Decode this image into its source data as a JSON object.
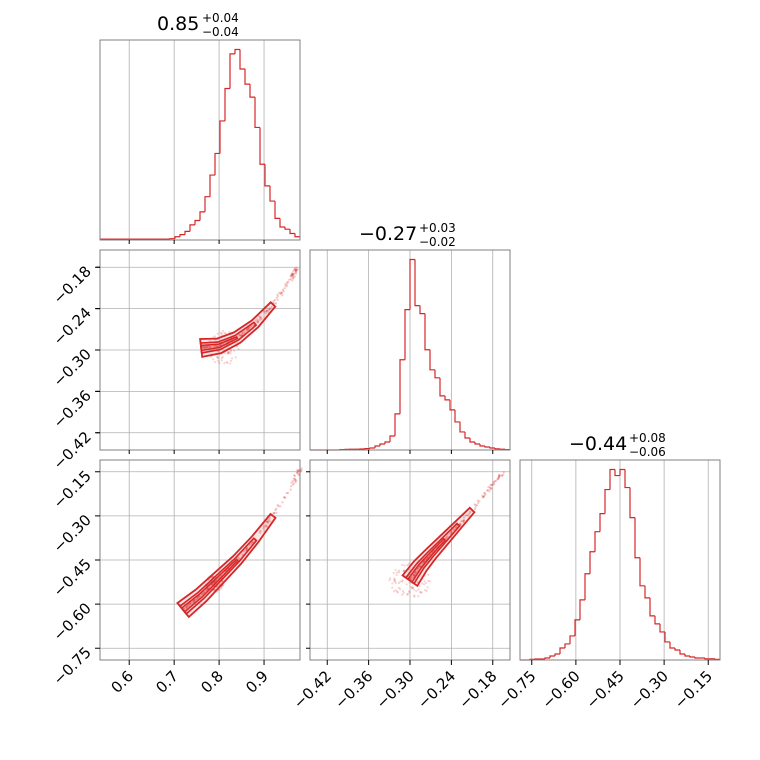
{
  "chart_data": {
    "type": "corner",
    "color": "#d62728",
    "parameters": [
      {
        "title_value": "0.85",
        "title_plus": "+0.04",
        "title_minus": "−0.04",
        "range": [
          0.535,
          0.98
        ],
        "ticks": [
          0.6,
          0.7,
          0.8,
          0.9
        ],
        "tick_labels": [
          "0.6",
          "0.7",
          "0.8",
          "0.9"
        ],
        "hist_x": [
          0.535,
          0.546,
          0.557,
          0.568,
          0.579,
          0.591,
          0.602,
          0.613,
          0.624,
          0.635,
          0.646,
          0.657,
          0.668,
          0.68,
          0.691,
          0.702,
          0.713,
          0.724,
          0.735,
          0.746,
          0.757,
          0.769,
          0.78,
          0.791,
          0.802,
          0.813,
          0.824,
          0.835,
          0.846,
          0.857,
          0.869,
          0.88,
          0.891,
          0.902,
          0.913,
          0.924,
          0.935,
          0.946,
          0.958,
          0.969
        ],
        "hist_y": [
          0.4,
          0.4,
          0.4,
          0.4,
          0.4,
          0.4,
          0.4,
          0.4,
          0.4,
          0.4,
          0.4,
          0.4,
          0.4,
          0.4,
          0.6,
          1.5,
          2.5,
          4,
          7,
          9,
          13,
          20,
          30,
          40,
          55,
          70,
          86,
          88,
          79,
          72,
          66,
          52,
          35,
          25,
          18,
          10,
          6,
          5,
          3,
          1.5
        ]
      },
      {
        "title_value": "−0.27",
        "title_plus": "+0.03",
        "title_minus": "−0.02",
        "range": [
          -0.445,
          -0.155
        ],
        "ticks": [
          -0.42,
          -0.36,
          -0.3,
          -0.24,
          -0.18
        ],
        "tick_labels": [
          "−0.42",
          "−0.36",
          "−0.30",
          "−0.24",
          "−0.18"
        ],
        "hist_x": [
          -0.445,
          -0.438,
          -0.431,
          -0.424,
          -0.417,
          -0.41,
          -0.402,
          -0.395,
          -0.388,
          -0.381,
          -0.374,
          -0.367,
          -0.36,
          -0.353,
          -0.346,
          -0.339,
          -0.332,
          -0.325,
          -0.318,
          -0.311,
          -0.304,
          -0.297,
          -0.289,
          -0.282,
          -0.275,
          -0.268,
          -0.261,
          -0.254,
          -0.247,
          -0.24,
          -0.233,
          -0.226,
          -0.219,
          -0.212,
          -0.205,
          -0.198,
          -0.191,
          -0.184,
          -0.176,
          -0.169
        ],
        "hist_y": [
          0,
          0,
          0,
          0,
          0,
          0,
          0.2,
          0.3,
          0.4,
          0.4,
          0.5,
          0.7,
          1,
          2,
          3,
          4,
          7,
          18,
          45,
          70,
          95,
          72,
          68,
          50,
          40,
          36,
          27,
          25,
          20,
          14,
          9,
          6,
          4,
          3,
          2,
          1.5,
          1,
          0.6,
          0.4,
          0.2
        ]
      },
      {
        "title_value": "−0.44",
        "title_plus": "+0.08",
        "title_minus": "−0.06",
        "range": [
          -0.79,
          -0.11
        ],
        "ticks": [
          -0.75,
          -0.6,
          -0.45,
          -0.3,
          -0.15
        ],
        "tick_labels": [
          "−0.75",
          "−0.60",
          "−0.45",
          "−0.30",
          "−0.15"
        ],
        "hist_x": [
          -0.79,
          -0.773,
          -0.756,
          -0.739,
          -0.722,
          -0.705,
          -0.688,
          -0.671,
          -0.654,
          -0.637,
          -0.62,
          -0.603,
          -0.586,
          -0.569,
          -0.552,
          -0.535,
          -0.518,
          -0.501,
          -0.484,
          -0.467,
          -0.45,
          -0.433,
          -0.416,
          -0.399,
          -0.382,
          -0.365,
          -0.348,
          -0.331,
          -0.314,
          -0.297,
          -0.28,
          -0.263,
          -0.246,
          -0.229,
          -0.212,
          -0.195,
          -0.178,
          -0.161,
          -0.144,
          -0.127
        ],
        "hist_y": [
          0,
          0,
          0.3,
          0.5,
          0.5,
          1,
          2,
          3,
          6,
          8,
          12,
          20,
          30,
          43,
          54,
          64,
          73,
          85,
          95,
          92,
          95,
          86,
          71,
          51,
          37,
          31,
          22,
          18,
          14,
          9,
          6,
          5,
          3,
          2,
          1.5,
          1,
          1,
          0.6,
          0.6,
          0.3
        ]
      }
    ],
    "scatter_pairs": [
      {
        "row": 1,
        "col": 0,
        "ridge": [
          [
            0.76,
            -0.297
          ],
          [
            0.8,
            -0.294
          ],
          [
            0.84,
            -0.282
          ],
          [
            0.88,
            -0.262
          ],
          [
            0.92,
            -0.234
          ],
          [
            0.96,
            -0.197
          ],
          [
            0.975,
            -0.18
          ]
        ],
        "blob_center": [
          0.81,
          -0.297
        ],
        "blob_spread": [
          0.035,
          0.025
        ]
      },
      {
        "row": 2,
        "col": 0,
        "ridge": [
          [
            0.72,
            -0.62
          ],
          [
            0.76,
            -0.57
          ],
          [
            0.8,
            -0.51
          ],
          [
            0.84,
            -0.45
          ],
          [
            0.88,
            -0.38
          ],
          [
            0.92,
            -0.3
          ],
          [
            0.96,
            -0.2
          ],
          [
            0.98,
            -0.14
          ]
        ],
        "blob_center": [
          0.79,
          -0.53
        ],
        "blob_spread": [
          0.02,
          0.03
        ]
      },
      {
        "row": 2,
        "col": 1,
        "ridge": [
          [
            -0.3,
            -0.52
          ],
          [
            -0.285,
            -0.47
          ],
          [
            -0.27,
            -0.43
          ],
          [
            -0.25,
            -0.38
          ],
          [
            -0.23,
            -0.33
          ],
          [
            -0.21,
            -0.28
          ],
          [
            -0.185,
            -0.21
          ],
          [
            -0.165,
            -0.15
          ]
        ],
        "blob_center": [
          -0.3,
          -0.52
        ],
        "blob_spread": [
          0.03,
          0.06
        ]
      }
    ]
  }
}
